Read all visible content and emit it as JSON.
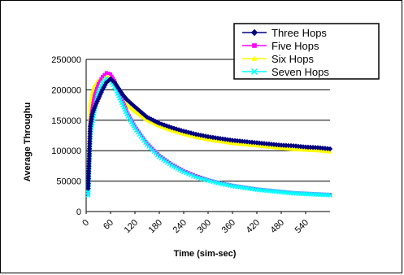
{
  "chart_data": {
    "type": "line",
    "xlabel": "Time (sim-sec)",
    "ylabel": "Average Throughu",
    "ylim": [
      0,
      250000
    ],
    "xlim": [
      0,
      600
    ],
    "y_ticks": [
      "0",
      "50000",
      "100000",
      "150000",
      "200000",
      "250000"
    ],
    "x_ticks": [
      "0",
      "60",
      "120",
      "180",
      "240",
      "300",
      "360",
      "420",
      "480",
      "540"
    ],
    "grid": "horizontal",
    "legend_position": "top-right",
    "series": [
      {
        "name": "Three Hops",
        "color": "#000080",
        "marker": "diamond",
        "x": [
          5,
          10,
          15,
          20,
          30,
          40,
          50,
          60,
          70,
          80,
          90,
          100,
          120,
          150,
          180,
          210,
          240,
          270,
          300,
          330,
          360,
          390,
          420,
          450,
          480,
          510,
          540,
          570,
          600
        ],
        "values": [
          38000,
          140000,
          160000,
          170000,
          185000,
          200000,
          212000,
          218000,
          212000,
          202000,
          192000,
          184000,
          172000,
          155000,
          145000,
          138000,
          132000,
          127000,
          123000,
          120000,
          117000,
          115000,
          113000,
          111000,
          109000,
          108000,
          106000,
          105000,
          103000
        ]
      },
      {
        "name": "Five Hops",
        "color": "#FF00FF",
        "marker": "square",
        "x": [
          5,
          10,
          15,
          20,
          30,
          40,
          50,
          60,
          70,
          80,
          90,
          100,
          120,
          150,
          180,
          210,
          240,
          270,
          300,
          330,
          360,
          390,
          420,
          450,
          480,
          510,
          540,
          570,
          600
        ],
        "values": [
          28000,
          145000,
          170000,
          190000,
          210000,
          222000,
          228000,
          226000,
          215000,
          198000,
          182000,
          165000,
          140000,
          112000,
          92000,
          78000,
          67000,
          59000,
          52000,
          47000,
          43000,
          40000,
          37000,
          35000,
          33000,
          31000,
          30000,
          29000,
          28000
        ]
      },
      {
        "name": "Six Hops",
        "color": "#FFFF00",
        "marker": "triangle",
        "x": [
          5,
          10,
          15,
          20,
          30,
          40,
          50,
          60,
          70,
          80,
          90,
          100,
          120,
          150,
          180,
          210,
          240,
          270,
          300,
          330,
          360,
          390,
          420,
          450,
          480,
          510,
          540,
          570,
          600
        ],
        "values": [
          40000,
          175000,
          195000,
          205000,
          215000,
          218000,
          222000,
          218000,
          208000,
          195000,
          184000,
          175000,
          164000,
          150000,
          140000,
          133000,
          127000,
          122000,
          118000,
          115000,
          112000,
          110000,
          108000,
          106000,
          104000,
          102000,
          101000,
          100000,
          98000
        ]
      },
      {
        "name": "Seven Hops",
        "color": "#00FFFF",
        "marker": "x",
        "x": [
          5,
          10,
          15,
          20,
          30,
          40,
          50,
          60,
          70,
          80,
          90,
          100,
          120,
          150,
          180,
          210,
          240,
          270,
          300,
          330,
          360,
          390,
          420,
          450,
          480,
          510,
          540,
          570,
          600
        ],
        "values": [
          27000,
          125000,
          145000,
          165000,
          195000,
          210000,
          218000,
          215000,
          205000,
          190000,
          175000,
          160000,
          137000,
          110000,
          90000,
          76000,
          65000,
          57000,
          51000,
          46000,
          42000,
          39000,
          36000,
          34000,
          32000,
          30000,
          29000,
          28000,
          27000
        ]
      }
    ]
  }
}
